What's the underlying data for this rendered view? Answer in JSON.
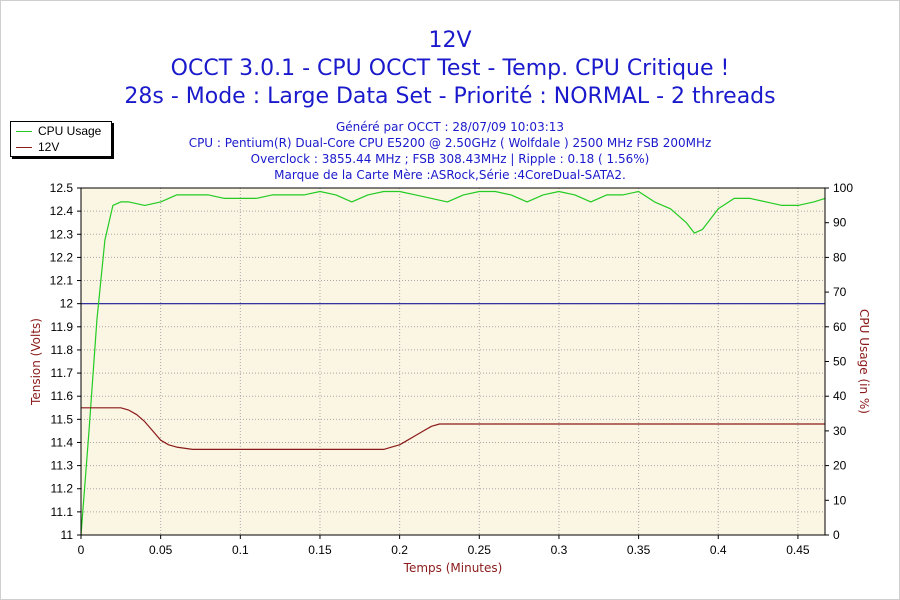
{
  "titles": {
    "line1": "12V",
    "line2": "OCCT 3.0.1 - CPU OCCT Test - Temp. CPU Critique !",
    "line3": "28s - Mode : Large Data Set - Priorité : NORMAL - 2 threads"
  },
  "info": {
    "line1": "Généré par OCCT : 28/07/09 10:03:13",
    "line2": "CPU : Pentium(R) Dual-Core CPU E5200 @ 2.50GHz ( Wolfdale ) 2500 MHz FSB 200MHz",
    "line3": "Overclock : 3855.44 MHz ; FSB 308.43MHz | Ripple : 0.18 ( 1.56%)",
    "line4": "Marque de la Carte Mère :ASRock,Série :4CoreDual-SATA2."
  },
  "legend": [
    {
      "label": "CPU Usage",
      "color": "#22cc22"
    },
    {
      "label": "12V",
      "color": "#8b1a1a"
    }
  ],
  "colors": {
    "plot_bg": "#fbf5e3",
    "grid": "#a8a8a8",
    "cpu_line": "#22cc22",
    "volt_line": "#8b1a1a",
    "ref_line": "#1a1a99",
    "title": "#1a1acc",
    "axis_title": "#8b1a1a"
  },
  "chart_data": {
    "type": "line",
    "xlabel": "Temps (Minutes)",
    "ylabel": "Tension (Volts)",
    "y2label": "CPU Usage (in %)",
    "xlim": [
      0,
      0.467
    ],
    "ylim": [
      11,
      12.5
    ],
    "y2lim": [
      0,
      100
    ],
    "x_ticks": [
      "0",
      "0.05",
      "0.1",
      "0.15",
      "0.2",
      "0.25",
      "0.3",
      "0.35",
      "0.4",
      "0.45"
    ],
    "x_tick_values": [
      0,
      0.05,
      0.1,
      0.15,
      0.2,
      0.25,
      0.3,
      0.35,
      0.4,
      0.45
    ],
    "y_ticks": [
      "11",
      "11.1",
      "11.2",
      "11.3",
      "11.4",
      "11.5",
      "11.6",
      "11.7",
      "11.8",
      "11.9",
      "12",
      "12.1",
      "12.2",
      "12.3",
      "12.4",
      "12.5"
    ],
    "y_tick_values": [
      11,
      11.1,
      11.2,
      11.3,
      11.4,
      11.5,
      11.6,
      11.7,
      11.8,
      11.9,
      12,
      12.1,
      12.2,
      12.3,
      12.4,
      12.5
    ],
    "y2_ticks": [
      "0",
      "10",
      "20",
      "30",
      "40",
      "50",
      "60",
      "70",
      "80",
      "90",
      "100"
    ],
    "y2_tick_values": [
      0,
      10,
      20,
      30,
      40,
      50,
      60,
      70,
      80,
      90,
      100
    ],
    "grid": true,
    "reference_line": 12,
    "series": [
      {
        "name": "CPU Usage",
        "axis": "y2",
        "x": [
          0,
          0.005,
          0.01,
          0.015,
          0.02,
          0.025,
          0.03,
          0.04,
          0.05,
          0.06,
          0.07,
          0.08,
          0.09,
          0.1,
          0.11,
          0.12,
          0.13,
          0.14,
          0.15,
          0.16,
          0.17,
          0.18,
          0.19,
          0.2,
          0.21,
          0.22,
          0.23,
          0.24,
          0.25,
          0.26,
          0.27,
          0.28,
          0.29,
          0.3,
          0.31,
          0.32,
          0.33,
          0.34,
          0.35,
          0.36,
          0.37,
          0.38,
          0.385,
          0.39,
          0.4,
          0.41,
          0.42,
          0.43,
          0.44,
          0.45,
          0.46,
          0.467
        ],
        "y": [
          0,
          30,
          62,
          85,
          95,
          96,
          96,
          95,
          96,
          98,
          98,
          98,
          97,
          97,
          97,
          98,
          98,
          98,
          99,
          98,
          96,
          98,
          99,
          99,
          98,
          97,
          96,
          98,
          99,
          99,
          98,
          96,
          98,
          99,
          98,
          96,
          98,
          98,
          99,
          96,
          94,
          90,
          87,
          88,
          94,
          97,
          97,
          96,
          95,
          95,
          96,
          97
        ]
      },
      {
        "name": "12V",
        "axis": "y",
        "x": [
          0,
          0.025,
          0.03,
          0.035,
          0.04,
          0.045,
          0.05,
          0.055,
          0.06,
          0.07,
          0.1,
          0.15,
          0.19,
          0.195,
          0.2,
          0.205,
          0.21,
          0.215,
          0.22,
          0.225,
          0.25,
          0.3,
          0.35,
          0.4,
          0.467
        ],
        "y": [
          11.55,
          11.55,
          11.54,
          11.52,
          11.49,
          11.45,
          11.41,
          11.39,
          11.38,
          11.37,
          11.37,
          11.37,
          11.37,
          11.38,
          11.39,
          11.41,
          11.43,
          11.45,
          11.47,
          11.48,
          11.48,
          11.48,
          11.48,
          11.48,
          11.48
        ]
      }
    ]
  }
}
